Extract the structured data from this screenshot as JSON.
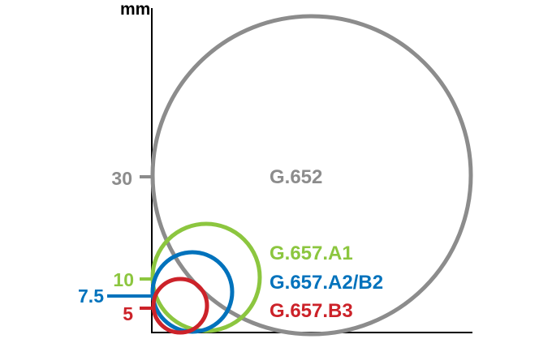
{
  "unit_label": "mm",
  "colors": {
    "axis": "#000000",
    "g652": "#8c8c8c",
    "g657_a1": "#8cc63f",
    "g657_a2_b2": "#0072bc",
    "g657_b3": "#cc2229"
  },
  "fibers": [
    {
      "name": "G.652",
      "radius_mm": 30,
      "radius_label": "30",
      "color_key": "g652"
    },
    {
      "name": "G.657.A1",
      "radius_mm": 10,
      "radius_label": "10",
      "color_key": "g657_a1"
    },
    {
      "name": "G.657.A2/B2",
      "radius_mm": 7.5,
      "radius_label": "7.5",
      "color_key": "g657_a2_b2"
    },
    {
      "name": "G.657.B3",
      "radius_mm": 5,
      "radius_label": "5",
      "color_key": "g657_b3"
    }
  ]
}
